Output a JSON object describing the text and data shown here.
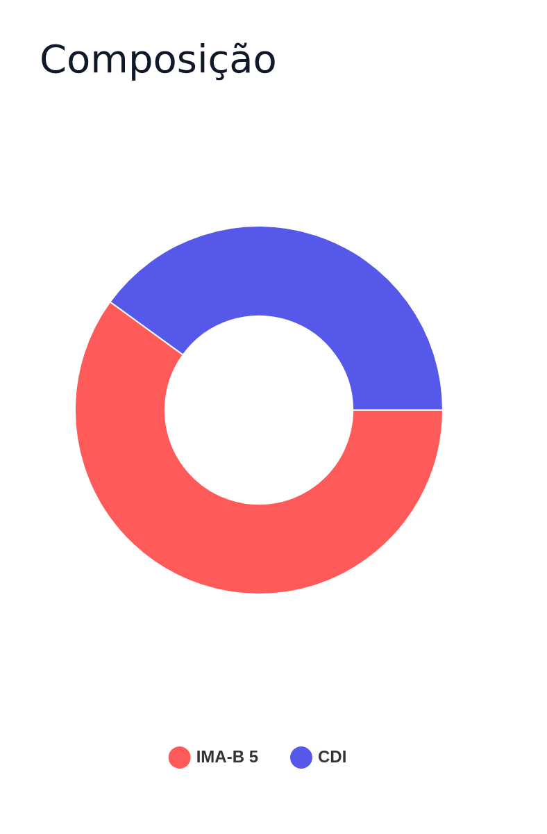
{
  "chart_data": {
    "type": "donut",
    "title": "Composição",
    "categories": [
      "IMA-B 5",
      "CDI"
    ],
    "values": [
      60,
      40
    ],
    "colors": [
      "#ff5a5a",
      "#5558e8"
    ],
    "legend": "bottom"
  }
}
